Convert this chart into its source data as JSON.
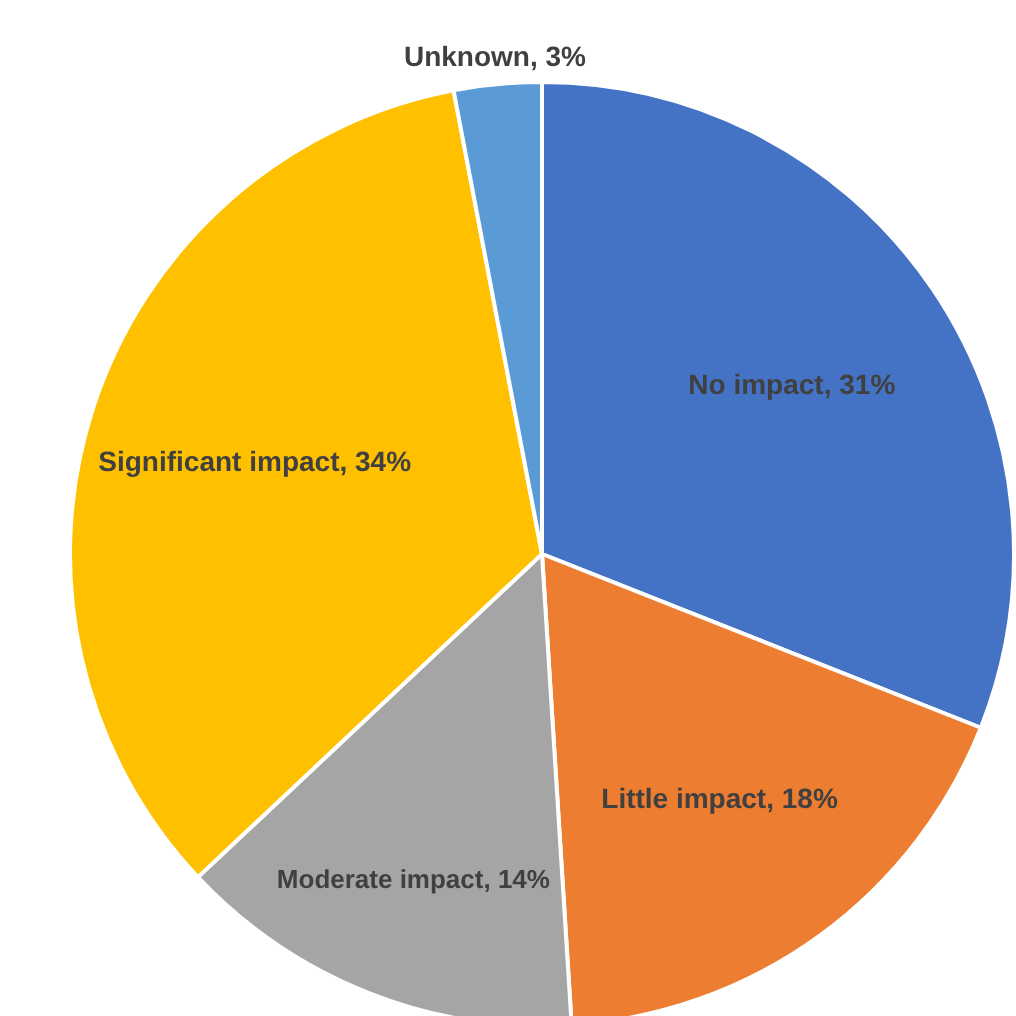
{
  "chart_data": {
    "type": "pie",
    "categories": [
      "No impact",
      "Little impact",
      "Moderate impact",
      "Significant impact",
      "Unknown"
    ],
    "values": [
      31,
      18,
      14,
      34,
      3
    ],
    "value_labels": [
      "31%",
      "18%",
      "14%",
      "34%",
      "3%"
    ],
    "colors": [
      "#4472c4",
      "#ed7d31",
      "#a5a5a5",
      "#ffc000",
      "#5b9bd5"
    ]
  }
}
